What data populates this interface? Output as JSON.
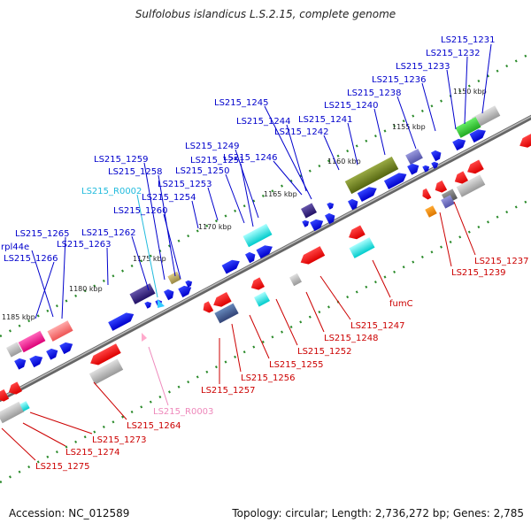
{
  "title": "Sulfolobus islandicus L.S.2.15, complete genome",
  "footer": {
    "accession": "Accession: NC_012589",
    "summary": "Topology: circular; Length: 2,736,272 bp; Genes: 2,785"
  },
  "colors": {
    "blue_label": "#0000cc",
    "cyan_label": "#22bbdd",
    "red_label": "#cc0000",
    "pink_label": "#ee88bb",
    "backbone": "#888888",
    "dots": "#2a8a2a"
  },
  "scale_labels": [
    "1150 kbp",
    "1155 kbp",
    "1160 kbp",
    "1165 kbp",
    "1170 kbp",
    "1175 kbp",
    "1180 kbp",
    "1185 kbp"
  ],
  "labels_above": [
    "LS215_1231",
    "LS215_1232",
    "LS215_1233",
    "LS215_1236",
    "LS215_1238",
    "LS215_1240",
    "LS215_1241",
    "LS215_1242",
    "LS215_1244",
    "LS215_1245",
    "LS215_1246",
    "LS215_1249",
    "LS215_1251",
    "LS215_1250",
    "LS215_1253",
    "LS215_1254",
    "LS215_1259",
    "LS215_1258",
    "LS215_R0002",
    "LS215_1260",
    "LS215_1262",
    "LS215_1263",
    "LS215_1265",
    "rpl44e",
    "LS215_1266"
  ],
  "labels_below": [
    "LS215_1237",
    "LS215_1239",
    "fumC",
    "LS215_1247",
    "LS215_1248",
    "LS215_1252",
    "LS215_1255",
    "LS215_1256",
    "LS215_1257",
    "LS215_R0003",
    "LS215_1264",
    "LS215_1273",
    "LS215_1274",
    "LS215_1275"
  ]
}
